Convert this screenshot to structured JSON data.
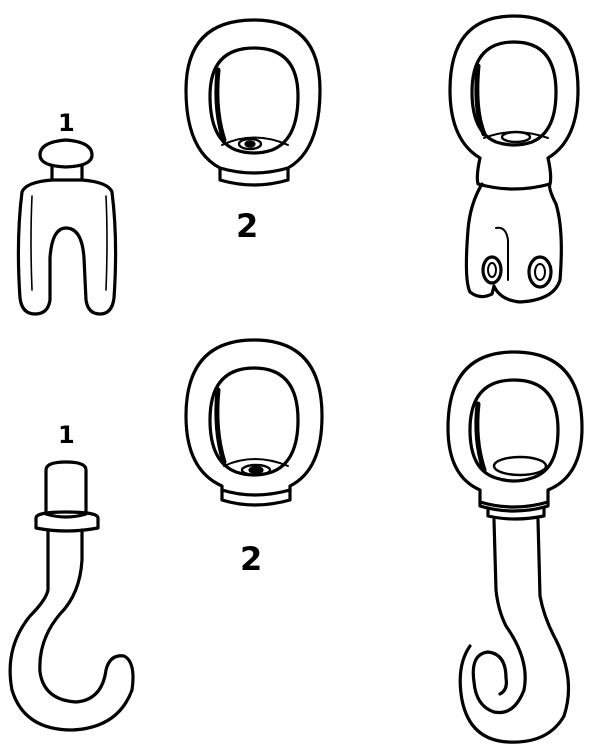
{
  "labels": {
    "top_part_1": "1",
    "top_part_2": "2",
    "bottom_part_1": "1",
    "bottom_part_2": "2"
  },
  "figures": [
    {
      "name": "clevis-fork-part",
      "group": "top",
      "part": "1"
    },
    {
      "name": "swivel-eye-part",
      "group": "top",
      "part": "2"
    },
    {
      "name": "assembled-swivel-clevis",
      "group": "top",
      "part": "assembly"
    },
    {
      "name": "hook-part",
      "group": "bottom",
      "part": "1"
    },
    {
      "name": "swivel-eye-part",
      "group": "bottom",
      "part": "2"
    },
    {
      "name": "assembled-swivel-hook",
      "group": "bottom",
      "part": "assembly"
    }
  ],
  "colors": {
    "line": "#000000",
    "background": "#ffffff"
  }
}
